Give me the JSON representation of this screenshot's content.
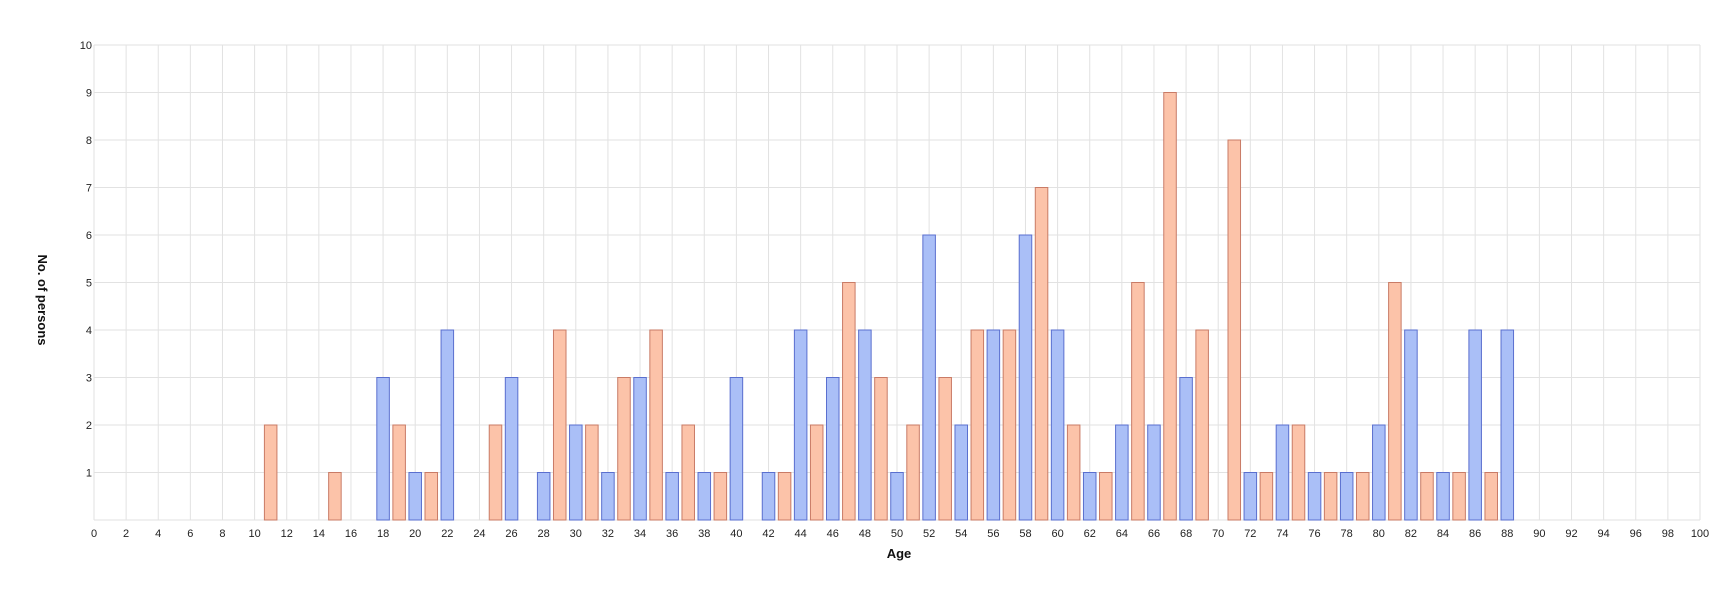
{
  "chart_data": {
    "type": "bar",
    "title": "",
    "xlabel": "Age",
    "ylabel": "No. of persons",
    "xlim": [
      0,
      100
    ],
    "ylim": [
      0,
      10
    ],
    "x_ticks": [
      0,
      2,
      4,
      6,
      8,
      10,
      12,
      14,
      16,
      18,
      20,
      22,
      24,
      26,
      28,
      30,
      32,
      34,
      36,
      38,
      40,
      42,
      44,
      46,
      48,
      50,
      52,
      54,
      56,
      58,
      60,
      62,
      64,
      66,
      68,
      70,
      72,
      74,
      76,
      78,
      80,
      82,
      84,
      86,
      88,
      90,
      92,
      94,
      96,
      98,
      100
    ],
    "y_ticks": [
      1,
      2,
      3,
      4,
      5,
      6,
      7,
      8,
      9,
      10
    ],
    "grid": true,
    "legend": "none",
    "colors": {
      "blue_fill": "#aabff7",
      "blue_stroke": "#5a6fcf",
      "orange_fill": "#fcc3a9",
      "orange_stroke": "#c97b66"
    },
    "series": [
      {
        "color_key": "orange",
        "points": [
          {
            "x": 11,
            "y": 2
          },
          {
            "x": 15,
            "y": 1
          },
          {
            "x": 19,
            "y": 2
          },
          {
            "x": 21,
            "y": 1
          },
          {
            "x": 25,
            "y": 2
          },
          {
            "x": 29,
            "y": 4
          },
          {
            "x": 31,
            "y": 2
          },
          {
            "x": 33,
            "y": 3
          },
          {
            "x": 35,
            "y": 4
          },
          {
            "x": 37,
            "y": 2
          },
          {
            "x": 39,
            "y": 1
          },
          {
            "x": 43,
            "y": 1
          },
          {
            "x": 45,
            "y": 2
          },
          {
            "x": 47,
            "y": 5
          },
          {
            "x": 49,
            "y": 3
          },
          {
            "x": 51,
            "y": 2
          },
          {
            "x": 53,
            "y": 3
          },
          {
            "x": 55,
            "y": 4
          },
          {
            "x": 57,
            "y": 4
          },
          {
            "x": 59,
            "y": 7
          },
          {
            "x": 61,
            "y": 2
          },
          {
            "x": 63,
            "y": 1
          },
          {
            "x": 65,
            "y": 5
          },
          {
            "x": 67,
            "y": 9
          },
          {
            "x": 69,
            "y": 4
          },
          {
            "x": 71,
            "y": 8
          },
          {
            "x": 73,
            "y": 1
          },
          {
            "x": 75,
            "y": 2
          },
          {
            "x": 77,
            "y": 1
          },
          {
            "x": 79,
            "y": 1
          },
          {
            "x": 81,
            "y": 5
          },
          {
            "x": 83,
            "y": 1
          },
          {
            "x": 85,
            "y": 1
          },
          {
            "x": 87,
            "y": 1
          }
        ]
      },
      {
        "color_key": "blue",
        "points": [
          {
            "x": 18,
            "y": 3
          },
          {
            "x": 20,
            "y": 1
          },
          {
            "x": 22,
            "y": 4
          },
          {
            "x": 26,
            "y": 3
          },
          {
            "x": 28,
            "y": 1
          },
          {
            "x": 30,
            "y": 2
          },
          {
            "x": 32,
            "y": 1
          },
          {
            "x": 34,
            "y": 3
          },
          {
            "x": 36,
            "y": 1
          },
          {
            "x": 38,
            "y": 1
          },
          {
            "x": 40,
            "y": 3
          },
          {
            "x": 42,
            "y": 1
          },
          {
            "x": 44,
            "y": 4
          },
          {
            "x": 46,
            "y": 3
          },
          {
            "x": 48,
            "y": 4
          },
          {
            "x": 50,
            "y": 1
          },
          {
            "x": 52,
            "y": 6
          },
          {
            "x": 54,
            "y": 2
          },
          {
            "x": 56,
            "y": 4
          },
          {
            "x": 58,
            "y": 6
          },
          {
            "x": 60,
            "y": 4
          },
          {
            "x": 62,
            "y": 1
          },
          {
            "x": 64,
            "y": 2
          },
          {
            "x": 66,
            "y": 2
          },
          {
            "x": 68,
            "y": 3
          },
          {
            "x": 72,
            "y": 1
          },
          {
            "x": 74,
            "y": 2
          },
          {
            "x": 76,
            "y": 1
          },
          {
            "x": 78,
            "y": 1
          },
          {
            "x": 80,
            "y": 2
          },
          {
            "x": 82,
            "y": 4
          },
          {
            "x": 84,
            "y": 1
          },
          {
            "x": 86,
            "y": 4
          },
          {
            "x": 88,
            "y": 4
          }
        ]
      }
    ]
  }
}
